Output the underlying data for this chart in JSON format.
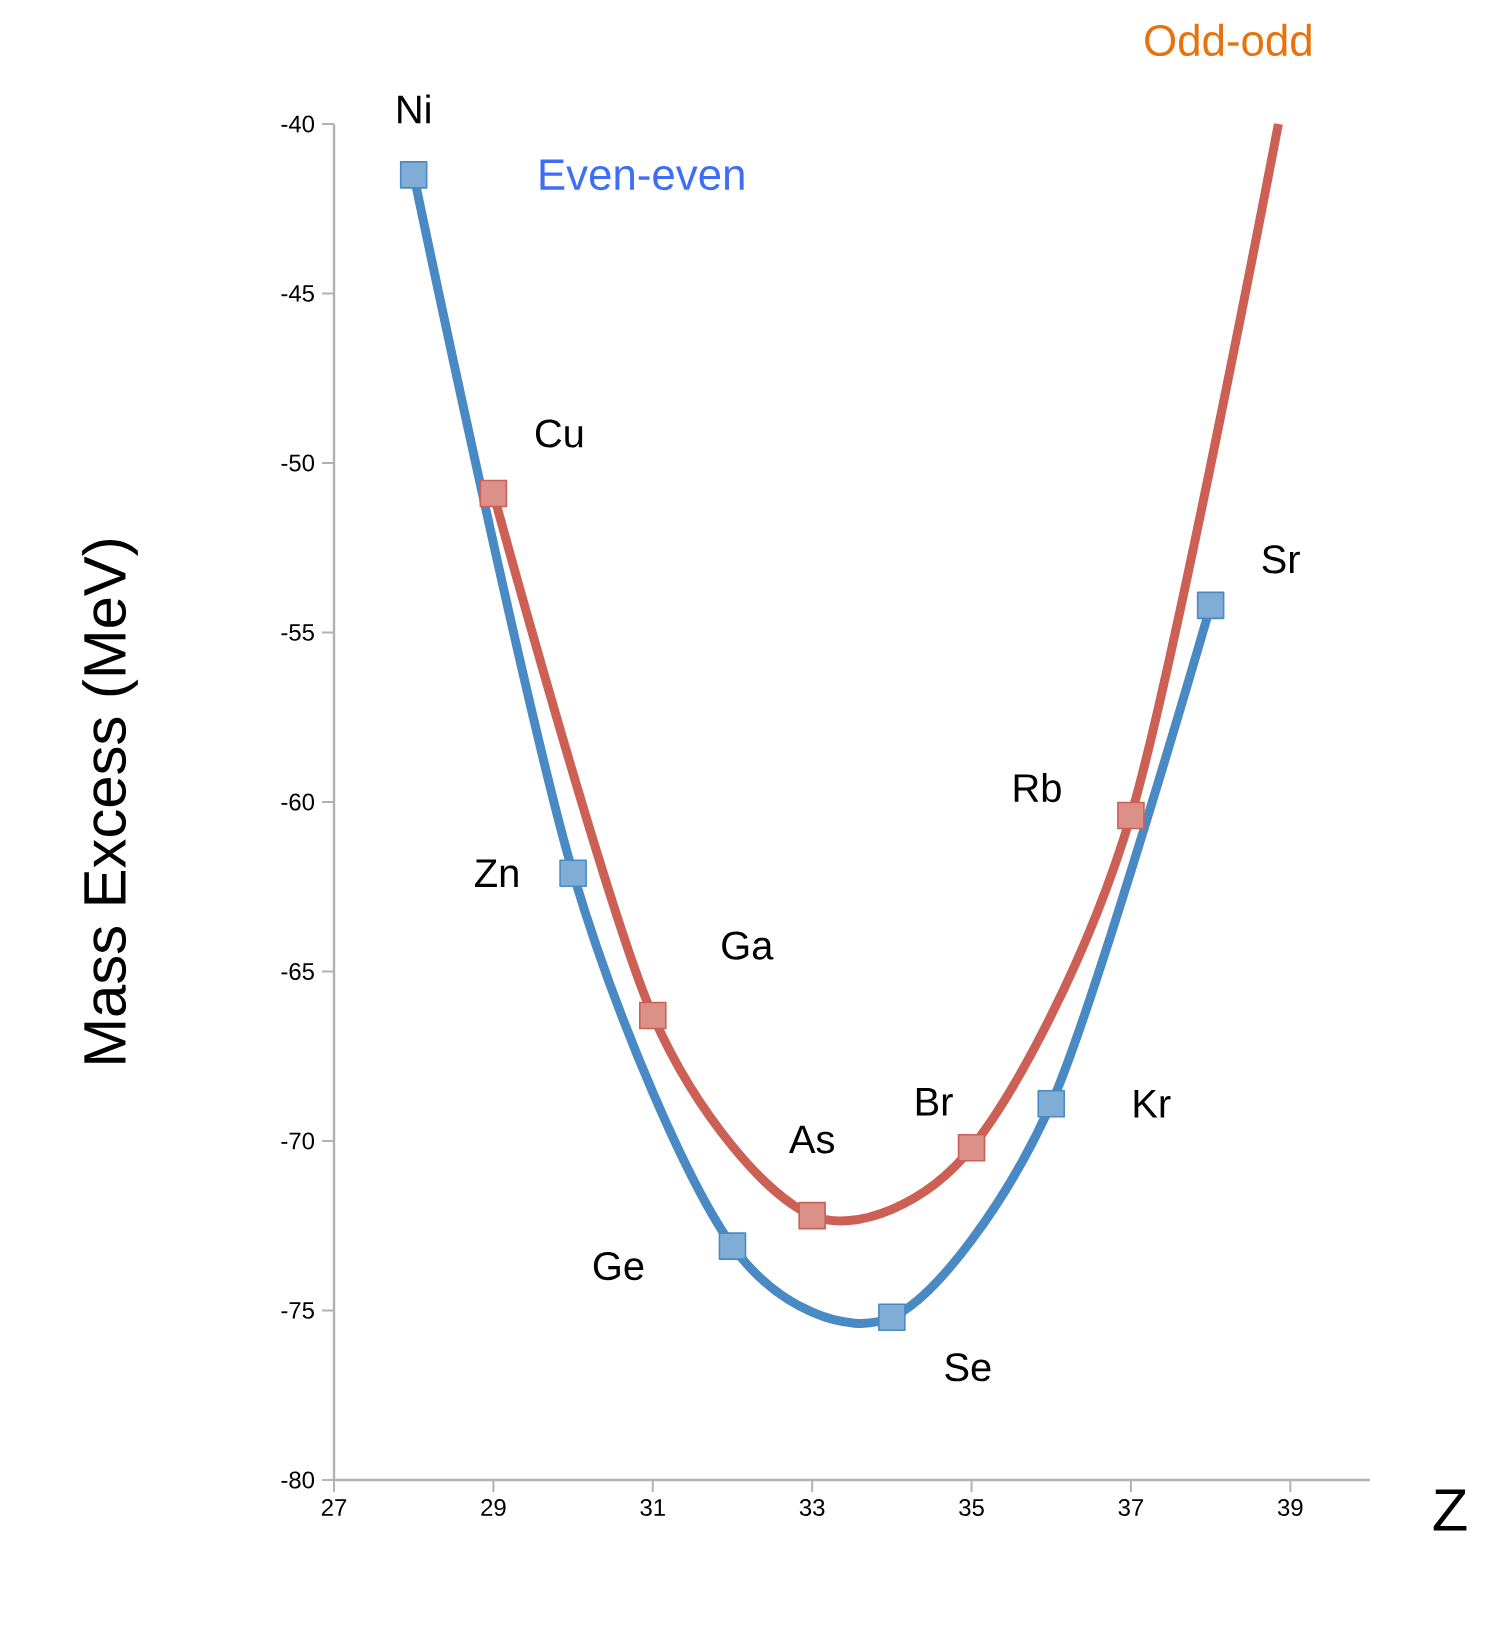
{
  "chart_data": {
    "type": "line",
    "xlabel": "Z",
    "ylabel": "Mass Excess (MeV)",
    "xlim": [
      27,
      40
    ],
    "ylim": [
      -80,
      -40
    ],
    "xticks": [
      27,
      29,
      31,
      33,
      35,
      37,
      39
    ],
    "yticks": [
      -80,
      -75,
      -70,
      -65,
      -60,
      -55,
      -50,
      -45,
      -40
    ],
    "grid": false,
    "marker": "square",
    "line_style": "solid",
    "series": [
      {
        "name": "Even-even",
        "color": "#4a8ac4",
        "x": [
          28,
          30,
          32,
          34,
          36,
          38
        ],
        "values": [
          -41.5,
          -62.1,
          -73.1,
          -75.2,
          -68.9,
          -54.2
        ]
      },
      {
        "name": "Odd-odd",
        "marker": "none",
        "color": "#cc6055",
        "x": [
          29,
          31,
          33,
          35,
          37,
          38.85
        ],
        "values": [
          -50.9,
          -66.3,
          -72.2,
          -70.2,
          -60.4,
          -40
        ]
      },
      {
        "type": "scatter",
        "color": "#cc6055",
        "x": [
          29,
          31,
          33,
          35,
          37
        ],
        "values": [
          -50.9,
          -66.3,
          -72.2,
          -70.2,
          -60.4
        ]
      }
    ],
    "annotations": [
      {
        "text": "Ni",
        "x": 28,
        "y": -41.5
      },
      {
        "text": "Cu",
        "x": 29,
        "y": -50.9
      },
      {
        "text": "Zn",
        "x": 30,
        "y": -62.1
      },
      {
        "text": "Ga",
        "x": 31,
        "y": -66.3
      },
      {
        "text": "Ge",
        "x": 32,
        "y": -73.1
      },
      {
        "text": "As",
        "x": 33,
        "y": -72.2
      },
      {
        "text": "Se",
        "x": 34,
        "y": -75.2
      },
      {
        "text": "Br",
        "x": 35,
        "y": -70.2
      },
      {
        "text": "Kr",
        "x": 36,
        "y": -68.9
      },
      {
        "text": "Rb",
        "x": 37,
        "y": -60.4
      },
      {
        "text": "Sr",
        "x": 38,
        "y": -54.2
      }
    ]
  }
}
